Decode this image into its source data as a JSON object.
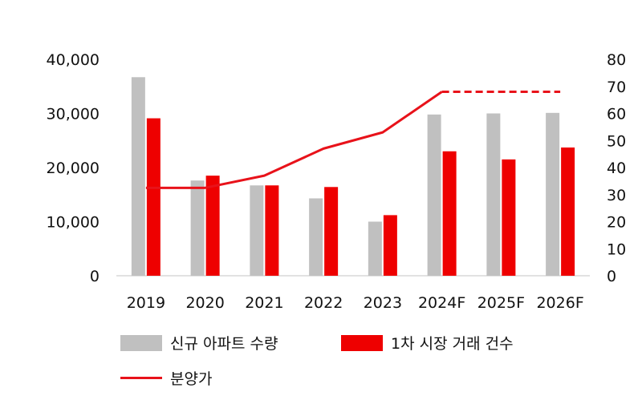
{
  "chart_data": {
    "type": "bar",
    "categories": [
      "2019",
      "2020",
      "2021",
      "2022",
      "2023",
      "2024F",
      "2025F",
      "2026F"
    ],
    "series": [
      {
        "name": "신규 아파트 수량",
        "type": "bar",
        "axis": "left",
        "color": "#c0c0c0",
        "values": [
          36700,
          17600,
          16700,
          14300,
          10000,
          29800,
          30000,
          30100
        ]
      },
      {
        "name": "1차 시장 거래 건수",
        "type": "bar",
        "axis": "left",
        "color": "#ee0000",
        "values": [
          29100,
          18500,
          16700,
          16400,
          11200,
          23000,
          21500,
          23700
        ]
      },
      {
        "name": "분양가",
        "type": "line",
        "axis": "right",
        "color": "#e8121a",
        "values": [
          32.5,
          32.5,
          37,
          47,
          53,
          68,
          68,
          68
        ],
        "dashed_from_index": 5
      }
    ],
    "y_left": {
      "ticks": [
        "0",
        "10,000",
        "20,000",
        "30,000",
        "40,000"
      ],
      "ylim": [
        0,
        40000
      ]
    },
    "y_right": {
      "ticks": [
        "0",
        "10",
        "20",
        "30",
        "40",
        "50",
        "60",
        "70",
        "80"
      ],
      "ylim": [
        0,
        80
      ]
    },
    "legend_placement": "bottom",
    "grid": false
  }
}
